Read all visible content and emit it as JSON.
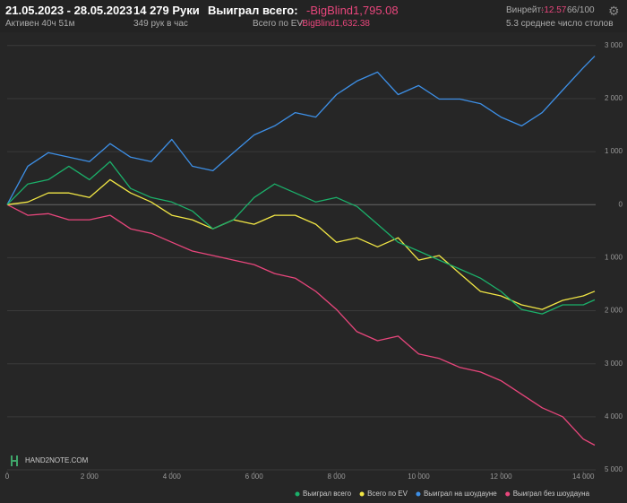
{
  "header": {
    "date_range": "21.05.2023 - 28.05.2023",
    "active_time": "Активен 40ч 51м",
    "hands": "14 279 Руки",
    "hands_per_hour": "349 рук в час",
    "won_total_label": "Выиграл всего:",
    "won_total": "-BigBlind1,795.08",
    "ev_total_label": "Всего по EV:",
    "ev_total": "-BigBlind1,632.38",
    "winrate_label": "Винрейт:",
    "winrate": "-12.57",
    "winrate_sample": "66/100",
    "tables": "5.3 среднее число столов"
  },
  "watermark": "HAND2NOTE.COM",
  "chart_data": {
    "type": "line",
    "x": [
      0,
      500,
      1000,
      1500,
      2000,
      2500,
      3000,
      3500,
      4000,
      4500,
      5000,
      5500,
      6000,
      6500,
      7000,
      7500,
      8000,
      8500,
      9000,
      9500,
      10000,
      10500,
      11000,
      11500,
      12000,
      12500,
      13000,
      13500,
      14000,
      14279
    ],
    "series": [
      {
        "name": "Выиграл всего",
        "color": "#1bb06a",
        "values": [
          0,
          390,
          470,
          725,
          470,
          810,
          305,
          135,
          50,
          -120,
          -455,
          -285,
          135,
          390,
          220,
          50,
          135,
          -35,
          -370,
          -710,
          -875,
          -1045,
          -1215,
          -1385,
          -1635,
          -1975,
          -2060,
          -1890,
          -1890,
          -1795
        ]
      },
      {
        "name": "Всего по EV",
        "color": "#f2e745",
        "values": [
          0,
          50,
          220,
          220,
          135,
          470,
          220,
          50,
          -200,
          -285,
          -455,
          -285,
          -370,
          -200,
          -200,
          -370,
          -710,
          -625,
          -795,
          -625,
          -1045,
          -960,
          -1300,
          -1635,
          -1720,
          -1890,
          -1975,
          -1805,
          -1720,
          -1632
        ]
      },
      {
        "name": "Выиграл на шоудауне",
        "color": "#3d8fe6",
        "values": [
          0,
          725,
          980,
          895,
          810,
          1150,
          895,
          810,
          1230,
          725,
          640,
          980,
          1315,
          1485,
          1735,
          1650,
          2075,
          2330,
          2500,
          2075,
          2245,
          1990,
          1990,
          1905,
          1650,
          1485,
          1735,
          2160,
          2580,
          2800
        ]
      },
      {
        "name": "Выиграл без шоудауна",
        "color": "#e8467c",
        "values": [
          0,
          -200,
          -170,
          -285,
          -285,
          -200,
          -455,
          -540,
          -710,
          -875,
          -960,
          -1045,
          -1130,
          -1300,
          -1385,
          -1635,
          -1975,
          -2395,
          -2565,
          -2480,
          -2815,
          -2900,
          -3070,
          -3155,
          -3320,
          -3575,
          -3830,
          -4000,
          -4420,
          -4535
        ]
      }
    ],
    "xlim": [
      0,
      14300
    ],
    "ylim": [
      -5000,
      3250
    ],
    "xticks": [
      0,
      {
        "value": 2000,
        "label": "2 000"
      },
      {
        "value": 4000,
        "label": "4 000"
      },
      {
        "value": 6000,
        "label": "6 000"
      },
      {
        "value": 8000,
        "label": "8 000"
      },
      {
        "value": 10000,
        "label": "10 000"
      },
      {
        "value": 12000,
        "label": "12 000"
      },
      {
        "value": 14000,
        "label": "14 000"
      }
    ],
    "yticks": [
      {
        "value": 3000,
        "label": "3 000"
      },
      {
        "value": 2000,
        "label": "2 000"
      },
      {
        "value": 1000,
        "label": "1 000"
      },
      0,
      {
        "value": -1000,
        "label": "1 000"
      },
      {
        "value": -2000,
        "label": "2 000"
      },
      {
        "value": -3000,
        "label": "3 000"
      },
      {
        "value": -4000,
        "label": "4 000"
      },
      {
        "value": -5000,
        "label": "5 000"
      }
    ],
    "grid": true
  }
}
